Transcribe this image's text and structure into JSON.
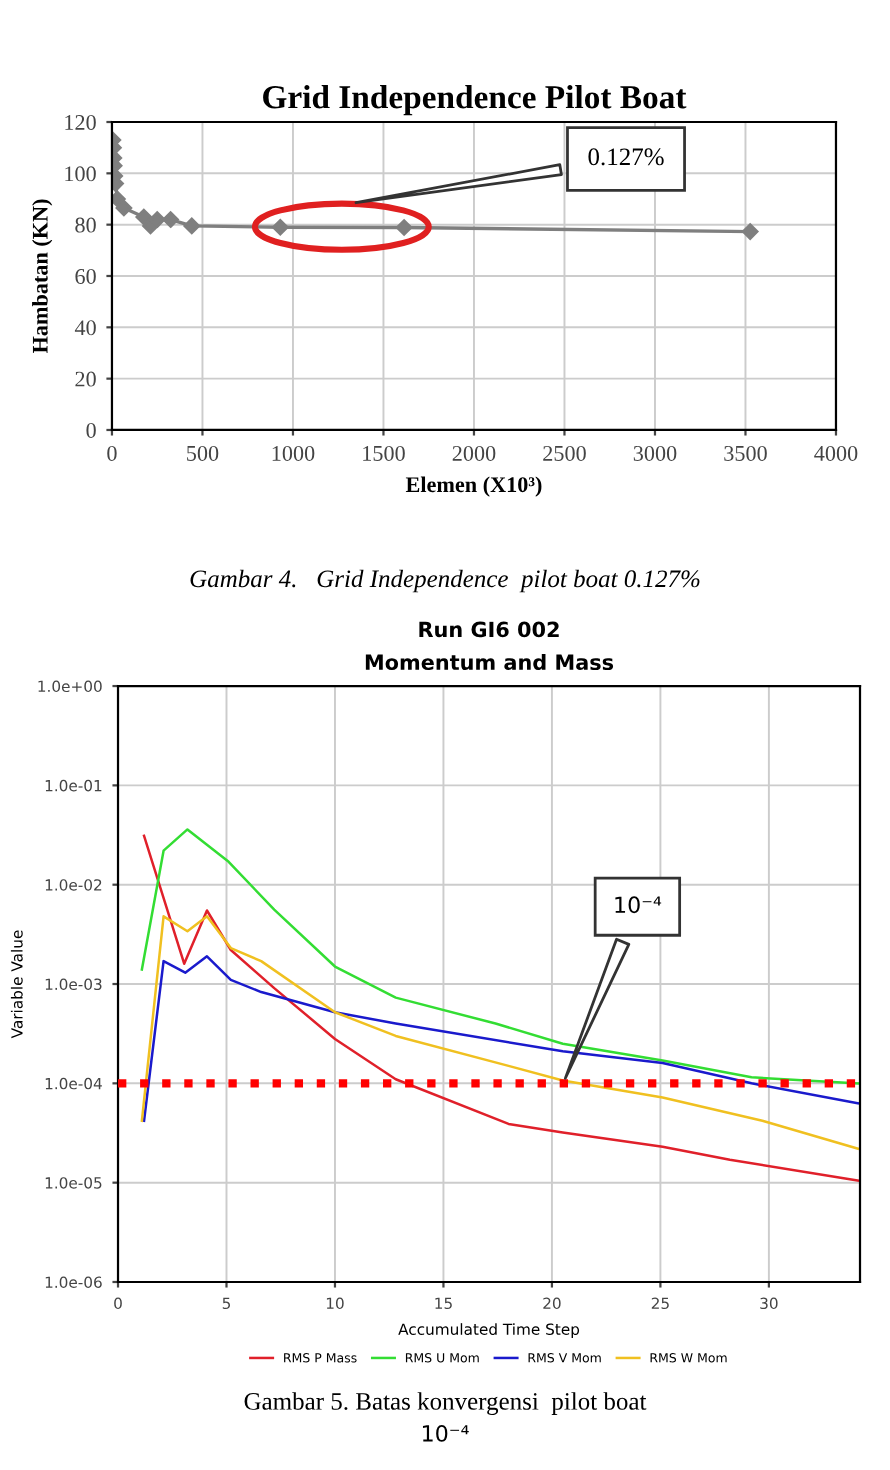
{
  "chart_data": [
    {
      "type": "line",
      "title": "Grid Independence Pilot Boat",
      "xlabel": "Elemen (X10³)",
      "ylabel": "Hambatan (KN)",
      "series": [
        {
          "color": "#7f7f7f",
          "x": [
            5,
            8,
            10,
            12,
            15,
            20,
            30,
            66,
            176,
            213,
            250,
            324,
            441,
            930,
            1614,
            3526
          ],
          "values": [
            113,
            110,
            106,
            103,
            99,
            96,
            90,
            86.5,
            83,
            79.5,
            82,
            82,
            79.5,
            79,
            78.9,
            77.3
          ]
        }
      ],
      "xlim": [
        0,
        4000
      ],
      "xticks": [
        0,
        500,
        1000,
        1500,
        2000,
        2500,
        3000,
        3500,
        4000
      ],
      "ylim": [
        0,
        120
      ],
      "yticks": [
        0,
        20,
        40,
        60,
        80,
        100,
        120
      ],
      "grid": true,
      "marker": "diamond",
      "line_style": "solid",
      "annotations": [
        "0.127%",
        "Gambar 4.   Grid Independence  pilot boat 0.127%"
      ]
    },
    {
      "type": "line",
      "title": "Run GI6 002",
      "subtitle": "Momentum and Mass",
      "xlabel": "Accumulated Time Step",
      "ylabel": "Variable Value",
      "series": [
        {
          "name": "RMS P Mass",
          "color": "#e0202a",
          "x": [
            1.2,
            3.05,
            4.1,
            5.2,
            7.2,
            10,
            12.8,
            18,
            20.5,
            25.1,
            28.2,
            34.1
          ],
          "values": [
            0.031,
            0.0016,
            0.0055,
            0.0022,
            0.00091,
            0.00028,
            0.00011,
            3.9e-05,
            3.2e-05,
            2.3e-05,
            1.7e-05,
            1.05e-05
          ]
        },
        {
          "name": "RMS U Mom",
          "color": "#33dd33",
          "x": [
            1.1,
            2.1,
            3.2,
            5.1,
            7.2,
            10,
            12.8,
            17.4,
            20.5,
            25.1,
            29.2,
            34.1
          ],
          "values": [
            0.0014,
            0.022,
            0.036,
            0.017,
            0.0056,
            0.0015,
            0.00073,
            0.0004,
            0.00025,
            0.00017,
            0.000115,
            0.0001
          ]
        },
        {
          "name": "RMS V Mom",
          "color": "#1a1acc",
          "x": [
            1.2,
            2.1,
            3.1,
            4.1,
            5.2,
            6.6,
            10,
            12.8,
            20.5,
            25.1,
            29.2,
            34.1
          ],
          "values": [
            4.2e-05,
            0.0017,
            0.0013,
            0.0019,
            0.0011,
            0.00083,
            0.00052,
            0.0004,
            0.00021,
            0.00016,
            0.0001,
            6.3e-05
          ]
        },
        {
          "name": "RMS W Mom",
          "color": "#f0c020",
          "x": [
            1.1,
            2.1,
            3.2,
            4.1,
            5.2,
            6.6,
            10,
            12.8,
            18,
            20.5,
            25.1,
            29.7,
            34.1
          ],
          "values": [
            4.2e-05,
            0.0048,
            0.0034,
            0.0048,
            0.0023,
            0.0017,
            0.00052,
            0.0003,
            0.00015,
            0.000107,
            7.2e-05,
            4.2e-05,
            2.2e-05
          ]
        }
      ],
      "log": "y",
      "xlim": [
        0,
        34.2
      ],
      "xticks": [
        0,
        5,
        10,
        15,
        20,
        25,
        30
      ],
      "ylim": [
        1e-06,
        1
      ],
      "yticks": [
        {
          "value": 1e-06,
          "label": "1.0e-06"
        },
        {
          "value": 1e-05,
          "label": "1.0e-05"
        },
        {
          "value": 0.0001,
          "label": "1.0e-04"
        },
        {
          "value": 0.001,
          "label": "1.0e-03"
        },
        {
          "value": 0.01,
          "label": "1.0e-02"
        },
        {
          "value": 0.1,
          "label": "1.0e-01"
        },
        {
          "value": 1,
          "label": "1.0e+00"
        }
      ],
      "grid": true,
      "legend": "bottom",
      "marker": "none",
      "line_style": "solid",
      "ref_lines": [
        {
          "axis": "y",
          "value": 0.0001,
          "label": "10⁻⁴",
          "color": "#ff0000",
          "line_style": "dotted"
        }
      ],
      "annotations": [
        "Gambar 5. Batas konvergensi  pilot boat",
        "10⁻⁴"
      ]
    }
  ]
}
